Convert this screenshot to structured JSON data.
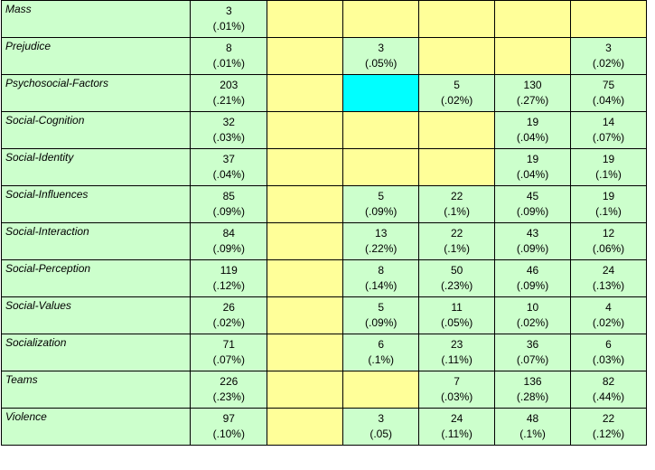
{
  "rows": [
    {
      "label": "Mass",
      "cells": [
        {
          "v": "3",
          "p": "(.01%)",
          "c": "g"
        },
        {
          "c": "y"
        },
        {
          "c": "y"
        },
        {
          "c": "y"
        },
        {
          "c": "y"
        },
        {
          "c": "y"
        }
      ]
    },
    {
      "label": "Prejudice",
      "cells": [
        {
          "v": "8",
          "p": "(.01%)",
          "c": "g"
        },
        {
          "c": "y"
        },
        {
          "v": "3",
          "p": "(.05%)",
          "c": "g"
        },
        {
          "c": "y"
        },
        {
          "c": "y"
        },
        {
          "v": "3",
          "p": "(.02%)",
          "c": "g"
        }
      ]
    },
    {
      "label": "Psychosocial-Factors",
      "cells": [
        {
          "v": "203",
          "p": "(.21%)",
          "c": "g"
        },
        {
          "c": "y"
        },
        {
          "c": "c"
        },
        {
          "v": "5",
          "p": "(.02%)",
          "c": "g"
        },
        {
          "v": "130",
          "p": "(.27%)",
          "c": "g"
        },
        {
          "v": "75",
          "p": "(.04%)",
          "c": "g"
        }
      ]
    },
    {
      "label": "Social-Cognition",
      "cells": [
        {
          "v": "32",
          "p": "(.03%)",
          "c": "g"
        },
        {
          "c": "y"
        },
        {
          "c": "y"
        },
        {
          "c": "y"
        },
        {
          "v": "19",
          "p": "(.04%)",
          "c": "g"
        },
        {
          "v": "14",
          "p": "(.07%)",
          "c": "g"
        }
      ]
    },
    {
      "label": "Social-Identity",
      "cells": [
        {
          "v": "37",
          "p": "(.04%)",
          "c": "g"
        },
        {
          "c": "y"
        },
        {
          "c": "y"
        },
        {
          "c": "y"
        },
        {
          "v": "19",
          "p": "(.04%)",
          "c": "g"
        },
        {
          "v": "19",
          "p": "(.1%)",
          "c": "g"
        }
      ]
    },
    {
      "label": "Social-Influences",
      "cells": [
        {
          "v": "85",
          "p": "(.09%)",
          "c": "g"
        },
        {
          "c": "y"
        },
        {
          "v": "5",
          "p": "(.09%)",
          "c": "g"
        },
        {
          "v": "22",
          "p": "(.1%)",
          "c": "g"
        },
        {
          "v": "45",
          "p": "(.09%)",
          "c": "g"
        },
        {
          "v": "19",
          "p": "(.1%)",
          "c": "g"
        }
      ]
    },
    {
      "label": "Social-Interaction",
      "cells": [
        {
          "v": "84",
          "p": "(.09%)",
          "c": "g"
        },
        {
          "c": "y"
        },
        {
          "v": "13",
          "p": "(.22%)",
          "c": "g"
        },
        {
          "v": "22",
          "p": "(.1%)",
          "c": "g"
        },
        {
          "v": "43",
          "p": "(.09%)",
          "c": "g"
        },
        {
          "v": "12",
          "p": "(.06%)",
          "c": "g"
        }
      ]
    },
    {
      "label": "Social-Perception",
      "cells": [
        {
          "v": "119",
          "p": "(.12%)",
          "c": "g"
        },
        {
          "c": "y"
        },
        {
          "v": "8",
          "p": "(.14%)",
          "c": "g"
        },
        {
          "v": "50",
          "p": "(.23%)",
          "c": "g"
        },
        {
          "v": "46",
          "p": "(.09%)",
          "c": "g"
        },
        {
          "v": "24",
          "p": "(.13%)",
          "c": "g"
        }
      ]
    },
    {
      "label": "Social-Values",
      "cells": [
        {
          "v": "26",
          "p": "(.02%)",
          "c": "g"
        },
        {
          "c": "y"
        },
        {
          "v": "5",
          "p": "(.09%)",
          "c": "g"
        },
        {
          "v": "11",
          "p": "(.05%)",
          "c": "g"
        },
        {
          "v": "10",
          "p": "(.02%)",
          "c": "g"
        },
        {
          "v": "4",
          "p": "(.02%)",
          "c": "g"
        }
      ]
    },
    {
      "label": "Socialization",
      "cells": [
        {
          "v": "71",
          "p": "(.07%)",
          "c": "g"
        },
        {
          "c": "y"
        },
        {
          "v": "6",
          "p": "(.1%)",
          "c": "g"
        },
        {
          "v": "23",
          "p": "(.11%)",
          "c": "g"
        },
        {
          "v": "36",
          "p": "(.07%)",
          "c": "g"
        },
        {
          "v": "6",
          "p": "(.03%)",
          "c": "g"
        }
      ]
    },
    {
      "label": "Teams",
      "cells": [
        {
          "v": "226",
          "p": "(.23%)",
          "c": "g"
        },
        {
          "c": "y"
        },
        {
          "c": "y"
        },
        {
          "v": "7",
          "p": "(.03%)",
          "c": "g"
        },
        {
          "v": "136",
          "p": "(.28%)",
          "c": "g"
        },
        {
          "v": "82",
          "p": "(.44%)",
          "c": "g"
        }
      ]
    },
    {
      "label": "Violence",
      "cells": [
        {
          "v": "97",
          "p": "(.10%)",
          "c": "g"
        },
        {
          "c": "y"
        },
        {
          "v": "3",
          "p": "(.05)",
          "c": "g"
        },
        {
          "v": "24",
          "p": "(.11%)",
          "c": "g"
        },
        {
          "v": "48",
          "p": "(.1%)",
          "c": "g"
        },
        {
          "v": "22",
          "p": "(.12%)",
          "c": "g"
        }
      ]
    }
  ],
  "colors": {
    "green": "#ccffcc",
    "yellow": "#ffff99",
    "cyan": "#00ffff"
  }
}
